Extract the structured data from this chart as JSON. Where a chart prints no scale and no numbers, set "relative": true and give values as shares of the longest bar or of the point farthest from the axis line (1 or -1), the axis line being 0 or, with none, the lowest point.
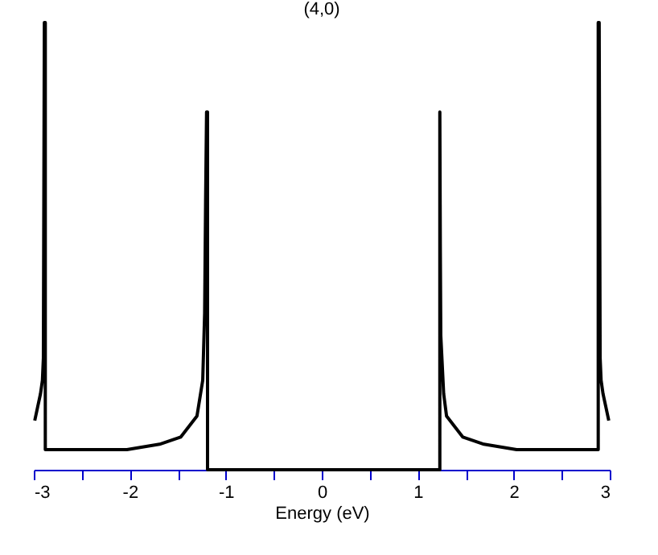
{
  "chart_data": {
    "type": "line",
    "title": "(4,0)",
    "xlabel": "Energy (eV)",
    "relative": true,
    "xlim": [
      -3,
      3
    ],
    "xticks": [
      -3,
      {
        "value": -2.5,
        "label": null
      },
      -2,
      {
        "value": -1.5,
        "label": null
      },
      -1,
      {
        "value": -0.5,
        "label": null
      },
      0,
      {
        "value": 0.5,
        "label": null
      },
      1,
      {
        "value": 1.5,
        "label": null
      },
      2,
      {
        "value": 2.5,
        "label": null
      },
      3
    ],
    "grid": false,
    "legend": false,
    "series": [
      {
        "color": "#000000",
        "x": [
          -2.99,
          -2.96,
          -2.93,
          -2.91,
          -2.9,
          -2.89,
          -2.88,
          -2.88,
          -2.03,
          -1.69,
          -1.47,
          -1.3,
          -1.24,
          -1.22,
          -1.21,
          -1.2,
          -1.19,
          -1.19,
          1.23,
          1.23,
          1.235,
          1.24,
          1.27,
          1.3,
          1.47,
          1.69,
          2.03,
          2.88,
          2.88,
          2.89,
          2.9,
          2.91,
          2.93,
          2.96,
          2.99
        ],
        "values": [
          0.11,
          0.14,
          0.17,
          0.2,
          0.25,
          1,
          1,
          0.045,
          0.045,
          0.057,
          0.073,
          0.12,
          0.2,
          0.35,
          0.6,
          0.8,
          0.8,
          0,
          0,
          0.8,
          0.5,
          0.3,
          0.17,
          0.12,
          0.073,
          0.057,
          0.045,
          0.045,
          1,
          1,
          0.25,
          0.2,
          0.17,
          0.14,
          0.11
        ]
      }
    ]
  }
}
